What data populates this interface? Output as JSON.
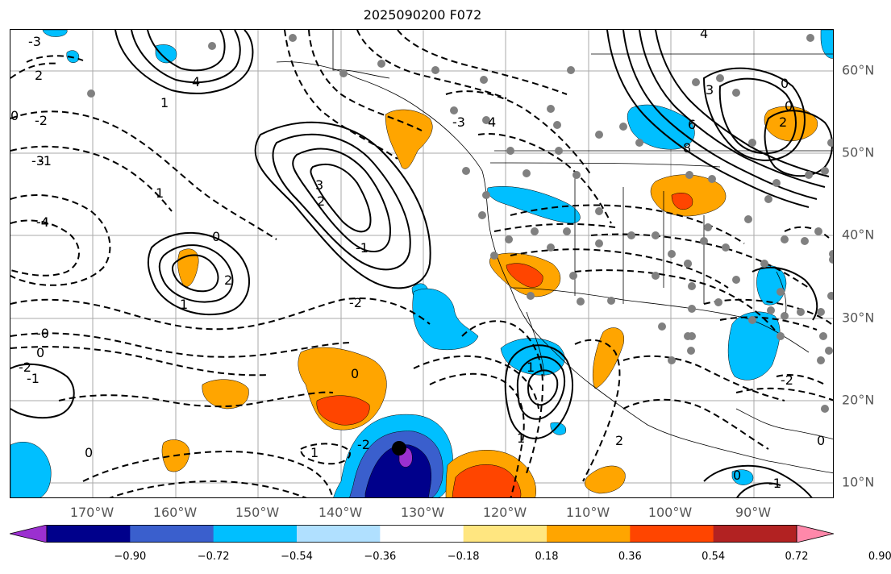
{
  "title": "2025090200 F072",
  "map": {
    "lon_range": [
      -180,
      -80
    ],
    "lat_range": [
      8,
      65
    ],
    "lon_labels": [
      "170°W",
      "160°W",
      "150°W",
      "140°W",
      "130°W",
      "120°W",
      "110°W",
      "100°W",
      "90°W"
    ],
    "lat_labels": [
      "60°N",
      "50°N",
      "40°N",
      "30°N",
      "20°N",
      "10°N"
    ],
    "contour_labels": [
      "-3",
      "2",
      "-2",
      "0",
      "-1",
      "4",
      "1",
      "-4",
      "1",
      "-3",
      "4",
      "3",
      "2",
      "-1",
      "0",
      "2",
      "1",
      "-2",
      "-0",
      "0",
      "-1",
      "-2",
      "0",
      "1",
      "-2",
      "2",
      "0",
      "1",
      "0",
      "-1",
      "-2",
      "0",
      "1",
      "-4",
      "-3",
      "0",
      "6",
      "8",
      "2",
      "3",
      "4",
      "0"
    ]
  },
  "colorbar": {
    "ticks": [
      "−0.90",
      "−0.72",
      "−0.54",
      "−0.36",
      "−0.18",
      "0.18",
      "0.36",
      "0.54",
      "0.72",
      "0.90"
    ],
    "colors": [
      "#9b30d0",
      "#00008b",
      "#3a5fcd",
      "#00bfff",
      "#b0e0ff",
      "#ffffff",
      "#ffe680",
      "#ffa500",
      "#ff4500",
      "#b22222",
      "#ff88aa"
    ]
  }
}
